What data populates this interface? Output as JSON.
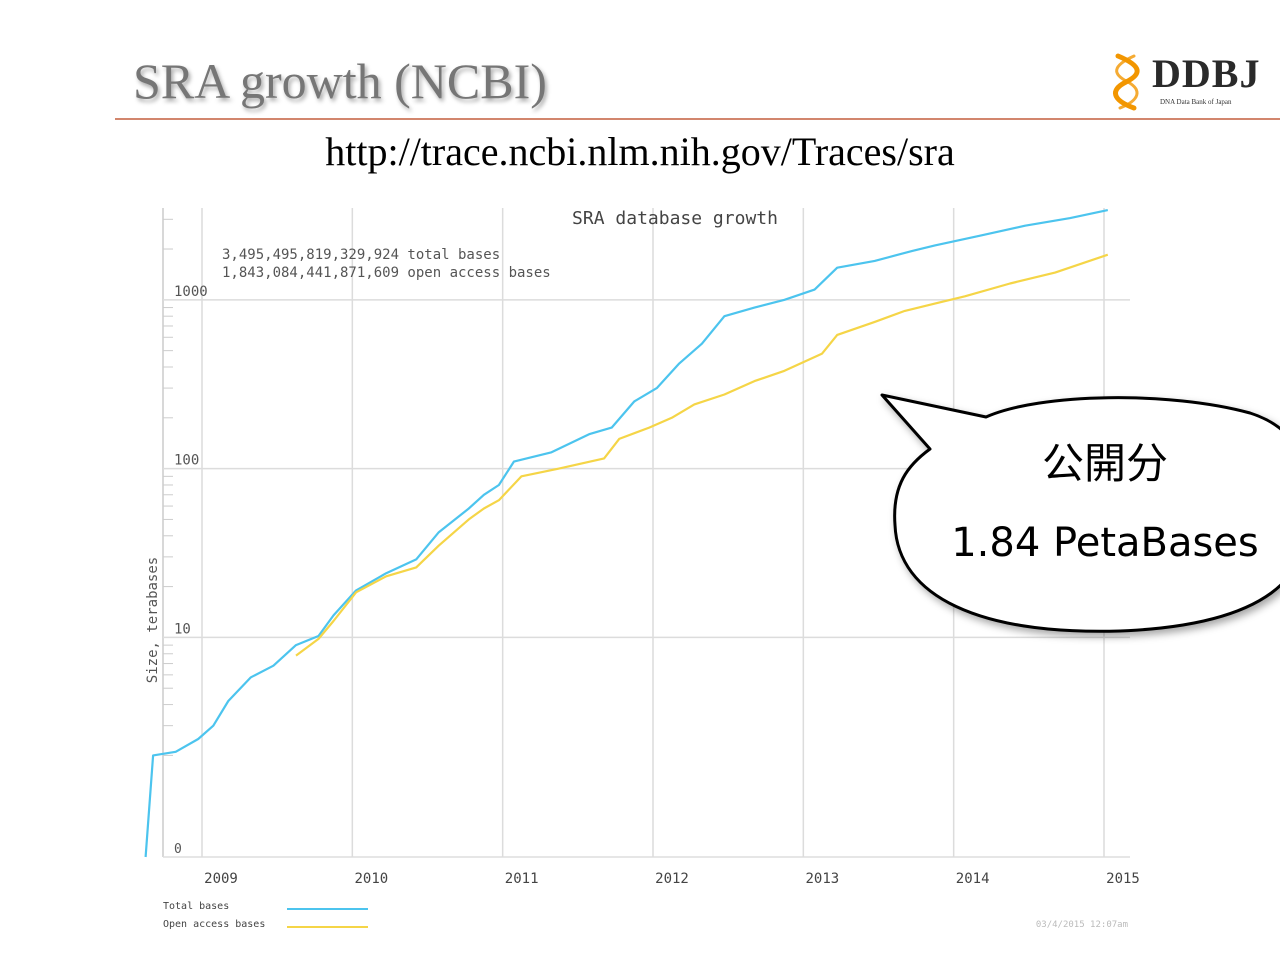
{
  "slide": {
    "title": "SRA growth (NCBI)",
    "url": "http://trace.ncbi.nlm.nih.gov/Traces/sra"
  },
  "logo": {
    "text": "DDBJ",
    "subtitle": "DNA Data Bank of Japan",
    "color_mark": "#f29600"
  },
  "callout": {
    "line1": "公開分",
    "line2": "1.84 PetaBases"
  },
  "chart_data": {
    "type": "line",
    "title": "SRA database growth",
    "ylabel": "Size, terabases",
    "xlabel": "",
    "y_scale": "log",
    "ylim": [
      0.5,
      3500
    ],
    "xlim": [
      2008.75,
      2015.15
    ],
    "y_ticks": [
      {
        "value": 10,
        "label": "10"
      },
      {
        "value": 100,
        "label": "100"
      },
      {
        "value": 1000,
        "label": "1000"
      }
    ],
    "y_zero_label": "0",
    "x_ticks": [
      {
        "value": 2009,
        "label": "2009"
      },
      {
        "value": 2010,
        "label": "2010"
      },
      {
        "value": 2011,
        "label": "2011"
      },
      {
        "value": 2012,
        "label": "2012"
      },
      {
        "value": 2013,
        "label": "2013"
      },
      {
        "value": 2014,
        "label": "2014"
      },
      {
        "value": 2015,
        "label": "2015"
      }
    ],
    "grid": true,
    "annotations": [
      "3,495,495,819,329,924 total bases",
      "1,843,084,441,871,609 open access bases"
    ],
    "timestamp": "03/4/2015 12:07am",
    "legend_position": "bottom-left",
    "series": [
      {
        "name": "Total bases",
        "color": "#4cc4ee",
        "points": [
          [
            2008.75,
            0.5
          ],
          [
            2008.8,
            2
          ],
          [
            2008.95,
            2.1
          ],
          [
            2009.1,
            2.5
          ],
          [
            2009.2,
            3
          ],
          [
            2009.3,
            4.2
          ],
          [
            2009.45,
            5.8
          ],
          [
            2009.6,
            6.8
          ],
          [
            2009.75,
            9
          ],
          [
            2009.9,
            10.2
          ],
          [
            2010.0,
            13.5
          ],
          [
            2010.15,
            19
          ],
          [
            2010.35,
            24
          ],
          [
            2010.55,
            29
          ],
          [
            2010.7,
            42
          ],
          [
            2010.9,
            58
          ],
          [
            2011.0,
            70
          ],
          [
            2011.1,
            80
          ],
          [
            2011.2,
            110
          ],
          [
            2011.45,
            125
          ],
          [
            2011.7,
            160
          ],
          [
            2011.85,
            175
          ],
          [
            2012.0,
            250
          ],
          [
            2012.15,
            300
          ],
          [
            2012.3,
            420
          ],
          [
            2012.45,
            550
          ],
          [
            2012.6,
            800
          ],
          [
            2012.8,
            900
          ],
          [
            2013.0,
            1000
          ],
          [
            2013.2,
            1150
          ],
          [
            2013.35,
            1550
          ],
          [
            2013.6,
            1700
          ],
          [
            2013.85,
            1950
          ],
          [
            2014.0,
            2100
          ],
          [
            2014.3,
            2400
          ],
          [
            2014.6,
            2750
          ],
          [
            2014.9,
            3050
          ],
          [
            2015.15,
            3400
          ]
        ]
      },
      {
        "name": "Open access bases",
        "color": "#f5d547",
        "points": [
          [
            2009.75,
            7.8
          ],
          [
            2009.9,
            9.8
          ],
          [
            2010.0,
            12.5
          ],
          [
            2010.15,
            18.5
          ],
          [
            2010.35,
            23
          ],
          [
            2010.55,
            26
          ],
          [
            2010.7,
            35
          ],
          [
            2010.9,
            50
          ],
          [
            2011.0,
            58
          ],
          [
            2011.1,
            65
          ],
          [
            2011.25,
            90
          ],
          [
            2011.5,
            100
          ],
          [
            2011.8,
            115
          ],
          [
            2011.9,
            150
          ],
          [
            2012.1,
            175
          ],
          [
            2012.25,
            200
          ],
          [
            2012.4,
            240
          ],
          [
            2012.6,
            275
          ],
          [
            2012.8,
            330
          ],
          [
            2013.0,
            380
          ],
          [
            2013.25,
            480
          ],
          [
            2013.35,
            620
          ],
          [
            2013.6,
            740
          ],
          [
            2013.8,
            860
          ],
          [
            2014.0,
            950
          ],
          [
            2014.2,
            1050
          ],
          [
            2014.5,
            1250
          ],
          [
            2014.8,
            1450
          ],
          [
            2015.15,
            1850
          ]
        ]
      }
    ]
  }
}
